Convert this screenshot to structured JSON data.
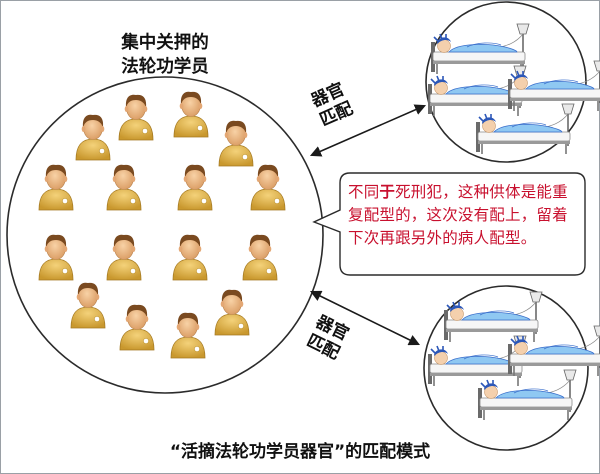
{
  "diagram": {
    "detained_group_label_line1": "集中关押的",
    "detained_group_label_line2": "法轮功学员",
    "match_label_top_line1": "器官",
    "match_label_top_line2": "匹配",
    "match_label_bottom_line1": "器官",
    "match_label_bottom_line2": "匹配",
    "callout_part1": "不同",
    "callout_emphasis": "于",
    "callout_part2": "死刑犯，这种供体是能重复配型的，这次没有配上，留着下次再跟另外的病人配型。",
    "caption": "“活摘法轮功学员器官”的匹配模式"
  },
  "colors": {
    "person_body": "#e0b84a",
    "person_face": "#f0c089",
    "person_hair": "#7a4a20",
    "bed_blue": "#3a6fcc",
    "callout_text": "#c8102e",
    "circle_stroke": "#2b2b2b",
    "arrow": "#1a1a1a"
  },
  "icons": [
    "person-icon",
    "patient-bed-icon",
    "double-arrow-icon"
  ]
}
